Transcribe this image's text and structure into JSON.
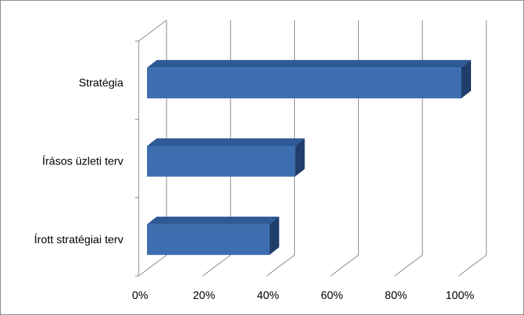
{
  "chart_data": {
    "type": "bar",
    "orientation": "horizontal",
    "style": "3d",
    "categories": [
      "Stratégia",
      "Írásos üzleti terv",
      "Írott stratégiai terv"
    ],
    "values": [
      100,
      48,
      40
    ],
    "x_ticks": [
      "0%",
      "20%",
      "40%",
      "60%",
      "80%",
      "100%"
    ],
    "xlim": [
      0,
      100
    ],
    "grid": true,
    "legend": "none",
    "bar_colors": {
      "front": "#3d6fb0",
      "top": "#2e5a95",
      "side": "#1f3e6b"
    },
    "colors": {
      "grid": "#808080",
      "axis": "#808080",
      "text": "#000000",
      "border": "#7f7f7f"
    }
  }
}
